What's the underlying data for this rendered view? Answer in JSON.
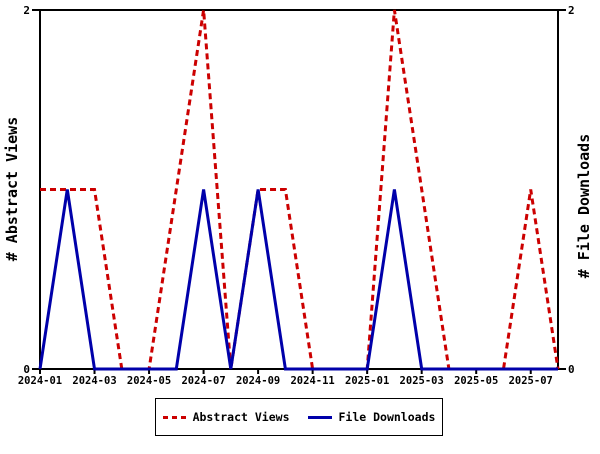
{
  "chart_data": {
    "type": "line",
    "x": [
      "2024-01",
      "2024-02",
      "2024-03",
      "2024-04",
      "2024-05",
      "2024-06",
      "2024-07",
      "2024-08",
      "2024-09",
      "2024-10",
      "2024-11",
      "2024-12",
      "2025-01",
      "2025-02",
      "2025-03",
      "2025-04",
      "2025-05",
      "2025-06",
      "2025-07",
      "2025-08"
    ],
    "series": [
      {
        "name": "Abstract Views",
        "color": "#cc0000",
        "style": "dashed",
        "values": [
          1,
          1,
          1,
          0,
          0,
          1,
          2,
          0,
          1,
          1,
          0,
          0,
          0,
          2,
          1,
          0,
          0,
          0,
          1,
          0
        ]
      },
      {
        "name": "File Downloads",
        "color": "#0000aa",
        "style": "solid",
        "values": [
          0,
          1,
          0,
          0,
          0,
          0,
          1,
          0,
          1,
          0,
          0,
          0,
          0,
          1,
          0,
          0,
          0,
          0,
          0,
          0
        ]
      }
    ],
    "left_ylabel": "# Abstract Views",
    "right_ylabel": "# File Downloads",
    "ylim": [
      0,
      2
    ],
    "yticks": [
      0,
      2
    ],
    "ytick_labels": [
      "0",
      "2"
    ],
    "xtick_label_every": 2,
    "xtick_labels": [
      "2024-01",
      "2024-03",
      "2024-05",
      "2024-07",
      "2024-09",
      "2024-11",
      "2025-01",
      "2025-03",
      "2025-05",
      "2025-07"
    ],
    "grid": false,
    "legend_position": "bottom",
    "axis_color": "#000000",
    "background_color": "#ffffff"
  }
}
